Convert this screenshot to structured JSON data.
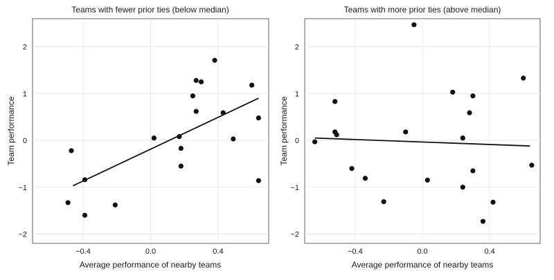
{
  "chart_data": [
    {
      "type": "scatter",
      "title": "Teams with fewer prior ties (below median)",
      "xlabel": "Average performance of nearby teams",
      "ylabel": "Team performance",
      "xlim": [
        -0.7,
        0.7
      ],
      "ylim": [
        -2.2,
        2.6
      ],
      "xticks": [
        -0.4,
        0.0,
        0.4
      ],
      "xtick_labels": [
        "−0.4",
        "0.0",
        "0.4"
      ],
      "yticks": [
        -2,
        -1,
        0,
        1,
        2
      ],
      "ytick_labels": [
        "−2",
        "−1",
        "0",
        "1",
        "2"
      ],
      "grid": true,
      "points": [
        {
          "x": -0.49,
          "y": -1.33
        },
        {
          "x": -0.47,
          "y": -0.22
        },
        {
          "x": -0.39,
          "y": -0.84
        },
        {
          "x": -0.39,
          "y": -1.6
        },
        {
          "x": -0.21,
          "y": -1.38
        },
        {
          "x": 0.02,
          "y": 0.05
        },
        {
          "x": 0.17,
          "y": 0.08
        },
        {
          "x": 0.18,
          "y": -0.17
        },
        {
          "x": 0.18,
          "y": -0.55
        },
        {
          "x": 0.25,
          "y": 0.95
        },
        {
          "x": 0.27,
          "y": 0.62
        },
        {
          "x": 0.27,
          "y": 1.28
        },
        {
          "x": 0.3,
          "y": 1.25
        },
        {
          "x": 0.38,
          "y": 1.71
        },
        {
          "x": 0.43,
          "y": 0.59
        },
        {
          "x": 0.49,
          "y": 0.03
        },
        {
          "x": 0.6,
          "y": 1.18
        },
        {
          "x": 0.64,
          "y": 0.48
        },
        {
          "x": 0.64,
          "y": -0.86
        }
      ],
      "fit_line": {
        "x": [
          -0.46,
          0.64
        ],
        "y": [
          -0.97,
          0.9
        ]
      }
    },
    {
      "type": "scatter",
      "title": "Teams with more prior ties (above median)",
      "xlabel": "Average performance of nearby teams",
      "ylabel": "Team performance",
      "xlim": [
        -0.7,
        0.7
      ],
      "ylim": [
        -2.2,
        2.6
      ],
      "xticks": [
        -0.4,
        0.0,
        0.4
      ],
      "xtick_labels": [
        "−0.4",
        "0.0",
        "0.4"
      ],
      "yticks": [
        -2,
        -1,
        0,
        1,
        2
      ],
      "ytick_labels": [
        "−2",
        "−1",
        "0",
        "1",
        "2"
      ],
      "grid": true,
      "points": [
        {
          "x": -0.64,
          "y": -0.03
        },
        {
          "x": -0.52,
          "y": 0.83
        },
        {
          "x": -0.52,
          "y": 0.18
        },
        {
          "x": -0.51,
          "y": 0.12
        },
        {
          "x": -0.42,
          "y": -0.6
        },
        {
          "x": -0.34,
          "y": -0.81
        },
        {
          "x": -0.23,
          "y": -1.31
        },
        {
          "x": -0.1,
          "y": 0.18
        },
        {
          "x": -0.05,
          "y": 2.47
        },
        {
          "x": 0.03,
          "y": -0.85
        },
        {
          "x": 0.18,
          "y": 1.03
        },
        {
          "x": 0.24,
          "y": 0.05
        },
        {
          "x": 0.24,
          "y": -1.0
        },
        {
          "x": 0.28,
          "y": 0.59
        },
        {
          "x": 0.3,
          "y": 0.95
        },
        {
          "x": 0.3,
          "y": -0.65
        },
        {
          "x": 0.36,
          "y": -1.73
        },
        {
          "x": 0.42,
          "y": -1.32
        },
        {
          "x": 0.6,
          "y": 1.33
        },
        {
          "x": 0.65,
          "y": -0.53
        }
      ],
      "fit_line": {
        "x": [
          -0.64,
          0.64
        ],
        "y": [
          0.05,
          -0.12
        ]
      }
    }
  ]
}
